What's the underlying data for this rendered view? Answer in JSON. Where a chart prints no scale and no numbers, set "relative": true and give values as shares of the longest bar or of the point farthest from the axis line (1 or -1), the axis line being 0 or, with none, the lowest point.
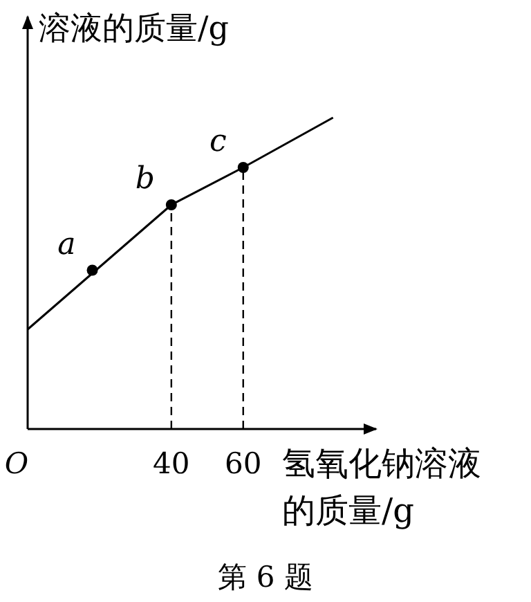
{
  "chart_data": {
    "type": "line",
    "relative": true,
    "xlabel": "氢氧化钠溶液的质量/g",
    "ylabel": "溶液的质量/g",
    "xlim": [
      0,
      97
    ],
    "xticks": [
      {
        "value": 0,
        "label": "O"
      },
      40,
      60
    ],
    "series": [
      {
        "color": "#000000",
        "x": [
          0,
          40,
          60,
          85
        ],
        "values": [
          0.32,
          0.72,
          0.84,
          1.0
        ]
      },
      {
        "type": "scatter",
        "color": "#000000",
        "marker": "circle",
        "x": [
          18,
          40,
          60
        ],
        "values": [
          0.51,
          0.72,
          0.84
        ]
      }
    ],
    "ref_lines": [
      {
        "axis": "x",
        "value": 40,
        "line_style": "dashed",
        "color": "#000000"
      },
      {
        "axis": "x",
        "value": 60,
        "line_style": "dashed",
        "color": "#000000"
      }
    ],
    "annotations": [
      {
        "text": "a",
        "x": 18,
        "y": 0.51
      },
      {
        "text": "b",
        "x": 40,
        "y": 0.72
      },
      {
        "text": "c",
        "x": 60,
        "y": 0.84
      },
      "第 6 题"
    ]
  }
}
